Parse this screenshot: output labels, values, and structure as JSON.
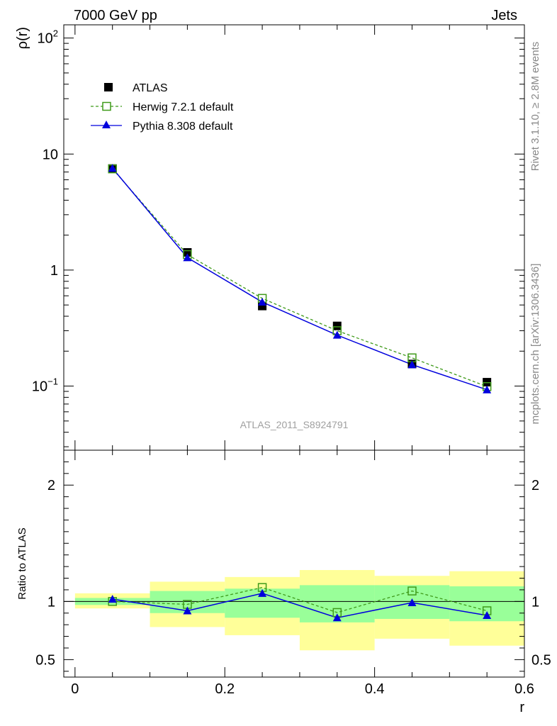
{
  "header": {
    "left": "7000 GeV pp",
    "right": "Jets",
    "side_top": "Rivet 3.1.10, ≥ 2.8M events",
    "side_bottom": "mcplots.cern.ch [arXiv:1306.3436]",
    "analysis_id": "ATLAS_2011_S8924791"
  },
  "colors": {
    "data": "#000000",
    "herwig": "#3f9a1a",
    "pythia": "#0000dd",
    "band_inner": "#99ff99",
    "band_outer": "#ffff99"
  },
  "chart_data": [
    {
      "type": "line",
      "panel": "main",
      "ylabel": "ρ(r)",
      "xlabel": "",
      "yscale": "log",
      "ylim": [
        0.028,
        130
      ],
      "xlim": [
        -0.015,
        0.6
      ],
      "yticks": [
        {
          "value": 100,
          "base": "10",
          "exp": "2"
        },
        {
          "value": 10,
          "text": "10"
        },
        {
          "value": 1,
          "text": "1"
        },
        {
          "value": 0.1,
          "base": "10",
          "exp": "−1"
        }
      ],
      "legend_position": "top-left",
      "x": [
        0.05,
        0.15,
        0.25,
        0.35,
        0.45,
        0.55
      ],
      "series": [
        {
          "name": "ATLAS",
          "style": "marker-square",
          "values": [
            7.5,
            1.42,
            0.49,
            0.33,
            0.155,
            0.108
          ]
        },
        {
          "name": "Herwig 7.2.1 default",
          "style": "dashed-open-square",
          "values": [
            7.45,
            1.36,
            0.57,
            0.3,
            0.175,
            0.099
          ]
        },
        {
          "name": "Pythia 8.308 default",
          "style": "solid-triangle",
          "values": [
            7.55,
            1.28,
            0.53,
            0.275,
            0.153,
            0.093
          ]
        }
      ]
    },
    {
      "type": "line",
      "panel": "ratio",
      "ylabel": "Ratio to ATLAS",
      "xlabel": "r",
      "ylim": [
        0.35,
        2.3
      ],
      "xlim": [
        -0.015,
        0.6
      ],
      "yticks": [
        0.5,
        1,
        2
      ],
      "xticks": [
        0,
        0.2,
        0.4,
        0.6
      ],
      "bins": [
        {
          "lo": 0.0,
          "hi": 0.1,
          "inner": [
            0.97,
            1.03
          ],
          "outer": [
            0.94,
            1.07
          ]
        },
        {
          "lo": 0.1,
          "hi": 0.2,
          "inner": [
            0.9,
            1.09
          ],
          "outer": [
            0.78,
            1.17
          ]
        },
        {
          "lo": 0.2,
          "hi": 0.3,
          "inner": [
            0.86,
            1.11
          ],
          "outer": [
            0.71,
            1.21
          ]
        },
        {
          "lo": 0.3,
          "hi": 0.4,
          "inner": [
            0.82,
            1.14
          ],
          "outer": [
            0.58,
            1.27
          ]
        },
        {
          "lo": 0.4,
          "hi": 0.5,
          "inner": [
            0.85,
            1.14
          ],
          "outer": [
            0.68,
            1.22
          ]
        },
        {
          "lo": 0.5,
          "hi": 0.6,
          "inner": [
            0.83,
            1.13
          ],
          "outer": [
            0.62,
            1.26
          ]
        }
      ],
      "x": [
        0.05,
        0.15,
        0.25,
        0.35,
        0.45,
        0.55
      ],
      "series": [
        {
          "name": "Herwig 7.2.1 default",
          "values": [
            1.0,
            0.975,
            1.12,
            0.905,
            1.09,
            0.92
          ]
        },
        {
          "name": "Pythia 8.308 default",
          "values": [
            1.02,
            0.92,
            1.07,
            0.86,
            0.99,
            0.88
          ]
        }
      ]
    }
  ]
}
